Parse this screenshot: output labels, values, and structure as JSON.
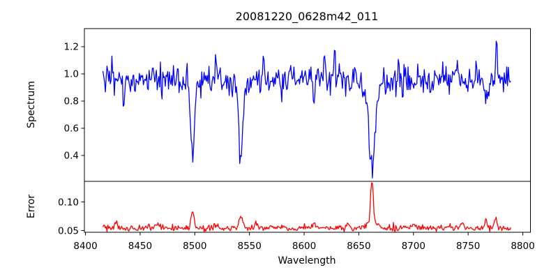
{
  "figure": {
    "background": "#ffffff",
    "text_color": "#000000",
    "spine_color": "#000000"
  },
  "chart_data": {
    "type": "line",
    "title": "20081220_0628m42_011",
    "xlabel": "Wavelength",
    "xlim": [
      8399,
      8807
    ],
    "xticks": [
      8400,
      8450,
      8500,
      8550,
      8600,
      8650,
      8700,
      8750,
      8800
    ],
    "x_data_range": [
      8416,
      8789
    ],
    "n_points": 505,
    "noise_seed": 20081220,
    "grid": false,
    "legend": null,
    "panels": [
      {
        "name": "spectrum",
        "ylabel": "Spectrum",
        "color": "#0000ff",
        "ylim": [
          0.21,
          1.333
        ],
        "yticks": [
          0.4,
          0.6,
          0.8,
          1.0,
          1.2
        ],
        "ytick_labels": [
          "0.4",
          "0.6",
          "0.8",
          "1.0",
          "1.2"
        ],
        "baseline": 0.958,
        "noise_sigma": 0.052,
        "clamp": [
          0.235,
          1.32
        ],
        "absorption_line_centers": [
          8498,
          8542,
          8662
        ],
        "features": [
          {
            "c": 8435,
            "a": -0.13,
            "s": 0.7
          },
          {
            "c": 8470,
            "a": -0.1,
            "s": 0.6
          },
          {
            "c": 8498,
            "a": -0.5,
            "s": 1.6
          },
          {
            "c": 8498,
            "a": -0.05,
            "s": 4.0
          },
          {
            "c": 8519,
            "a": 0.18,
            "s": 0.6
          },
          {
            "c": 8542,
            "a": -0.52,
            "s": 1.9
          },
          {
            "c": 8542,
            "a": -0.06,
            "s": 5.0
          },
          {
            "c": 8563,
            "a": 0.24,
            "s": 0.6
          },
          {
            "c": 8579,
            "a": -0.13,
            "s": 0.6
          },
          {
            "c": 8609,
            "a": -0.2,
            "s": 0.5
          },
          {
            "c": 8619,
            "a": 0.14,
            "s": 0.5
          },
          {
            "c": 8628,
            "a": 0.22,
            "s": 0.6
          },
          {
            "c": 8662,
            "a": -0.55,
            "s": 2.3
          },
          {
            "c": 8662,
            "a": -0.14,
            "s": 6.5
          },
          {
            "c": 8690,
            "a": -0.13,
            "s": 0.6
          },
          {
            "c": 8740,
            "a": 0.16,
            "s": 0.6
          },
          {
            "c": 8750,
            "a": -0.12,
            "s": 0.5
          },
          {
            "c": 8766,
            "a": -0.24,
            "s": 0.6
          },
          {
            "c": 8776,
            "a": 0.3,
            "s": 0.7
          }
        ]
      },
      {
        "name": "error",
        "ylabel": "Error",
        "color": "#ff0000",
        "ylim": [
          0.047,
          0.136
        ],
        "yticks": [
          0.05,
          0.1
        ],
        "ytick_labels": [
          "0.05",
          "0.10"
        ],
        "baseline": 0.0545,
        "noise_sigma": 0.0028,
        "clamp": [
          0.0482,
          0.1335
        ],
        "features": [
          {
            "c": 8428,
            "a": 0.011,
            "s": 1.2
          },
          {
            "c": 8466,
            "a": 0.008,
            "s": 1.5
          },
          {
            "c": 8498,
            "a": 0.026,
            "s": 1.4
          },
          {
            "c": 8520,
            "a": 0.007,
            "s": 1.5
          },
          {
            "c": 8542,
            "a": 0.019,
            "s": 1.7
          },
          {
            "c": 8556,
            "a": 0.007,
            "s": 1.3
          },
          {
            "c": 8608,
            "a": 0.006,
            "s": 1.2
          },
          {
            "c": 8640,
            "a": 0.006,
            "s": 1.5
          },
          {
            "c": 8662,
            "a": 0.076,
            "s": 1.2
          },
          {
            "c": 8662,
            "a": 0.01,
            "s": 4.5
          },
          {
            "c": 8700,
            "a": 0.005,
            "s": 2.0
          },
          {
            "c": 8745,
            "a": 0.008,
            "s": 1.4
          },
          {
            "c": 8766,
            "a": 0.017,
            "s": 1.1
          },
          {
            "c": 8775,
            "a": 0.018,
            "s": 1.3
          }
        ]
      }
    ]
  }
}
